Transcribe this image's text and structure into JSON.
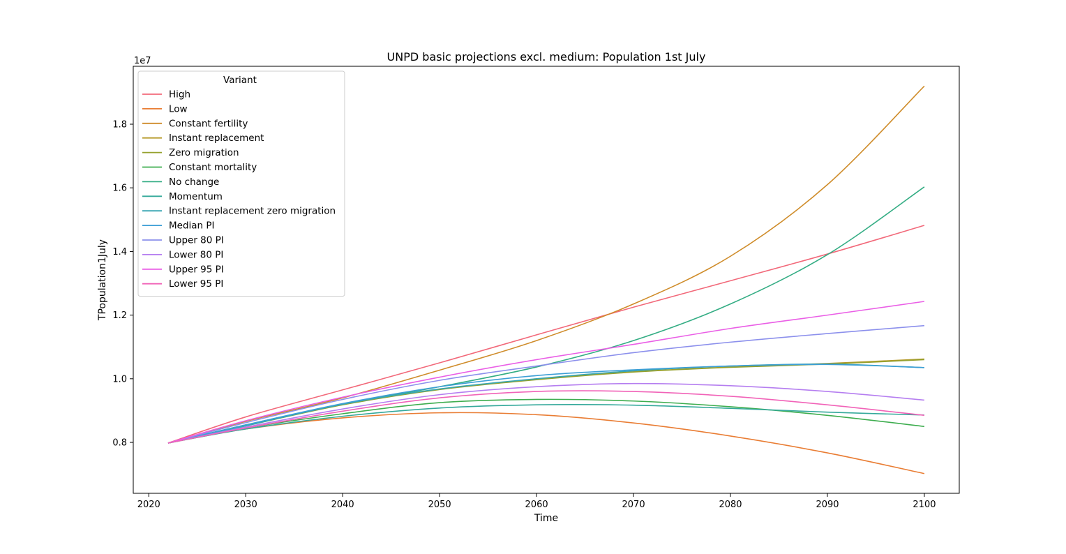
{
  "chart_data": {
    "type": "line",
    "title": "UNPD basic projections excl. medium: Population 1st July",
    "xlabel": "Time",
    "ylabel": "TPopulation1July",
    "y_offset_label": "1e7",
    "xlim": [
      2018.4,
      2103.6
    ],
    "ylim": [
      6.4,
      19.82
    ],
    "y_scale_note": "values in millions; axis multiplier 1e7",
    "x_ticks": [
      2020,
      2030,
      2040,
      2050,
      2060,
      2070,
      2080,
      2090,
      2100
    ],
    "y_ticks": [
      8,
      10,
      12,
      14,
      16,
      18
    ],
    "y_tick_labels": [
      "0.8",
      "1.0",
      "1.2",
      "1.4",
      "1.6",
      "1.8"
    ],
    "legend": {
      "title": "Variant",
      "position": "upper-left"
    },
    "x": [
      2022,
      2030,
      2040,
      2050,
      2060,
      2070,
      2080,
      2090,
      2100
    ],
    "series": [
      {
        "name": "High",
        "color": "#f2697a",
        "values": [
          7.98,
          8.8,
          9.65,
          10.5,
          11.38,
          12.25,
          13.08,
          13.92,
          14.82
        ]
      },
      {
        "name": "Low",
        "color": "#e97d34",
        "values": [
          7.98,
          8.42,
          8.77,
          8.93,
          8.87,
          8.61,
          8.2,
          7.67,
          7.02
        ]
      },
      {
        "name": "Constant fertility",
        "color": "#cf8c2a",
        "values": [
          7.98,
          8.66,
          9.4,
          10.27,
          11.2,
          12.35,
          13.85,
          16.1,
          19.2
        ]
      },
      {
        "name": "Instant replacement",
        "color": "#b69a2a",
        "values": [
          7.98,
          8.52,
          9.2,
          9.67,
          9.98,
          10.22,
          10.37,
          10.48,
          10.62
        ]
      },
      {
        "name": "Zero migration",
        "color": "#95a12e",
        "values": [
          7.98,
          8.52,
          9.18,
          9.66,
          9.97,
          10.21,
          10.36,
          10.46,
          10.6
        ]
      },
      {
        "name": "Constant mortality",
        "color": "#3ead4f",
        "values": [
          7.98,
          8.45,
          8.9,
          9.25,
          9.35,
          9.3,
          9.12,
          8.85,
          8.5
        ]
      },
      {
        "name": "No change",
        "color": "#34ad84",
        "values": [
          7.98,
          8.55,
          9.2,
          9.75,
          10.37,
          11.2,
          12.35,
          13.9,
          16.03
        ]
      },
      {
        "name": "Momentum",
        "color": "#35a99b",
        "values": [
          7.98,
          8.42,
          8.82,
          9.08,
          9.18,
          9.17,
          9.07,
          8.95,
          8.86
        ]
      },
      {
        "name": "Instant replacement zero migration",
        "color": "#38a6b2",
        "values": [
          7.98,
          8.52,
          9.2,
          9.68,
          10.0,
          10.25,
          10.4,
          10.46,
          10.35
        ]
      },
      {
        "name": "Median PI",
        "color": "#3d9fd6",
        "values": [
          7.98,
          8.55,
          9.22,
          9.75,
          10.1,
          10.28,
          10.4,
          10.45,
          10.35
        ]
      },
      {
        "name": "Upper 80 PI",
        "color": "#8c90ec",
        "values": [
          7.98,
          8.62,
          9.35,
          9.95,
          10.4,
          10.82,
          11.15,
          11.42,
          11.67
        ]
      },
      {
        "name": "Lower 80 PI",
        "color": "#b57ef0",
        "values": [
          7.98,
          8.48,
          9.05,
          9.5,
          9.75,
          9.85,
          9.78,
          9.6,
          9.33
        ]
      },
      {
        "name": "Upper 95 PI",
        "color": "#ea5fe6",
        "values": [
          7.98,
          8.68,
          9.42,
          10.05,
          10.6,
          11.08,
          11.58,
          12.0,
          12.43
        ]
      },
      {
        "name": "Lower 95 PI",
        "color": "#f163b8",
        "values": [
          7.98,
          8.45,
          8.98,
          9.4,
          9.6,
          9.6,
          9.45,
          9.18,
          8.85
        ]
      }
    ]
  }
}
